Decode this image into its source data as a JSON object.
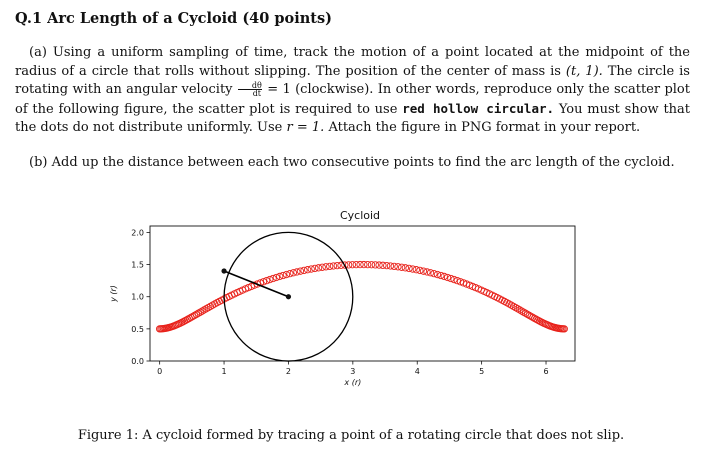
{
  "question": {
    "title": "Q.1 Arc Length of a Cycloid (40 points)",
    "part_a": {
      "label": "(a)",
      "t1": "Using a uniform sampling of time, track the motion of a point located at the midpoint of the radius of a circle that rolls without slipping. The position of the center of mass is",
      "pos": "(t, 1).",
      "t2": "The circle is rotating with an angular velocity",
      "frac_num": "dθ",
      "frac_den": "dt",
      "t3": "= 1 (clockwise). In other words, reproduce only the scatter plot of the following figure, the scatter plot is required to use",
      "emph": "red hollow circular.",
      "t4": "You must show that the dots do not distribute uniformly. Use",
      "r_eq": "r = 1.",
      "t5": "Attach the figure in PNG format in your report."
    },
    "part_b": {
      "label": "(b)",
      "text": "Add up the distance between each two consecutive points to find the arc length of the cycloid."
    }
  },
  "caption": "Figure 1: A cycloid formed by tracing a point of a rotating circle that does not slip.",
  "chart_data": {
    "type": "scatter",
    "title": "Cycloid",
    "xlabel": "x (r)",
    "ylabel": "y (r)",
    "xlim": [
      -0.15,
      6.45
    ],
    "ylim": [
      0,
      2.1
    ],
    "xticks": [
      "0",
      "1",
      "2",
      "3",
      "4",
      "5",
      "6"
    ],
    "yticks": [
      "0.0",
      "0.5",
      "1.0",
      "1.5",
      "2.0"
    ],
    "grid": false,
    "marker": {
      "shape": "hollow-circle",
      "color": "#e8221b"
    },
    "series": [
      {
        "x_formula": "t - 0.5*sin(t)",
        "y_formula": "1 - 0.5*cos(t)",
        "t_range": [
          0,
          6.2832
        ],
        "samples": 160
      }
    ],
    "circle": {
      "center": [
        2.0,
        1.0
      ],
      "radius": 1.0,
      "color": "#000000"
    },
    "radius_segment": {
      "from": [
        2.0,
        1.0
      ],
      "to": [
        1.0,
        1.4
      ],
      "color": "#000000"
    },
    "highlight_point": [
      1.0,
      1.4
    ]
  }
}
